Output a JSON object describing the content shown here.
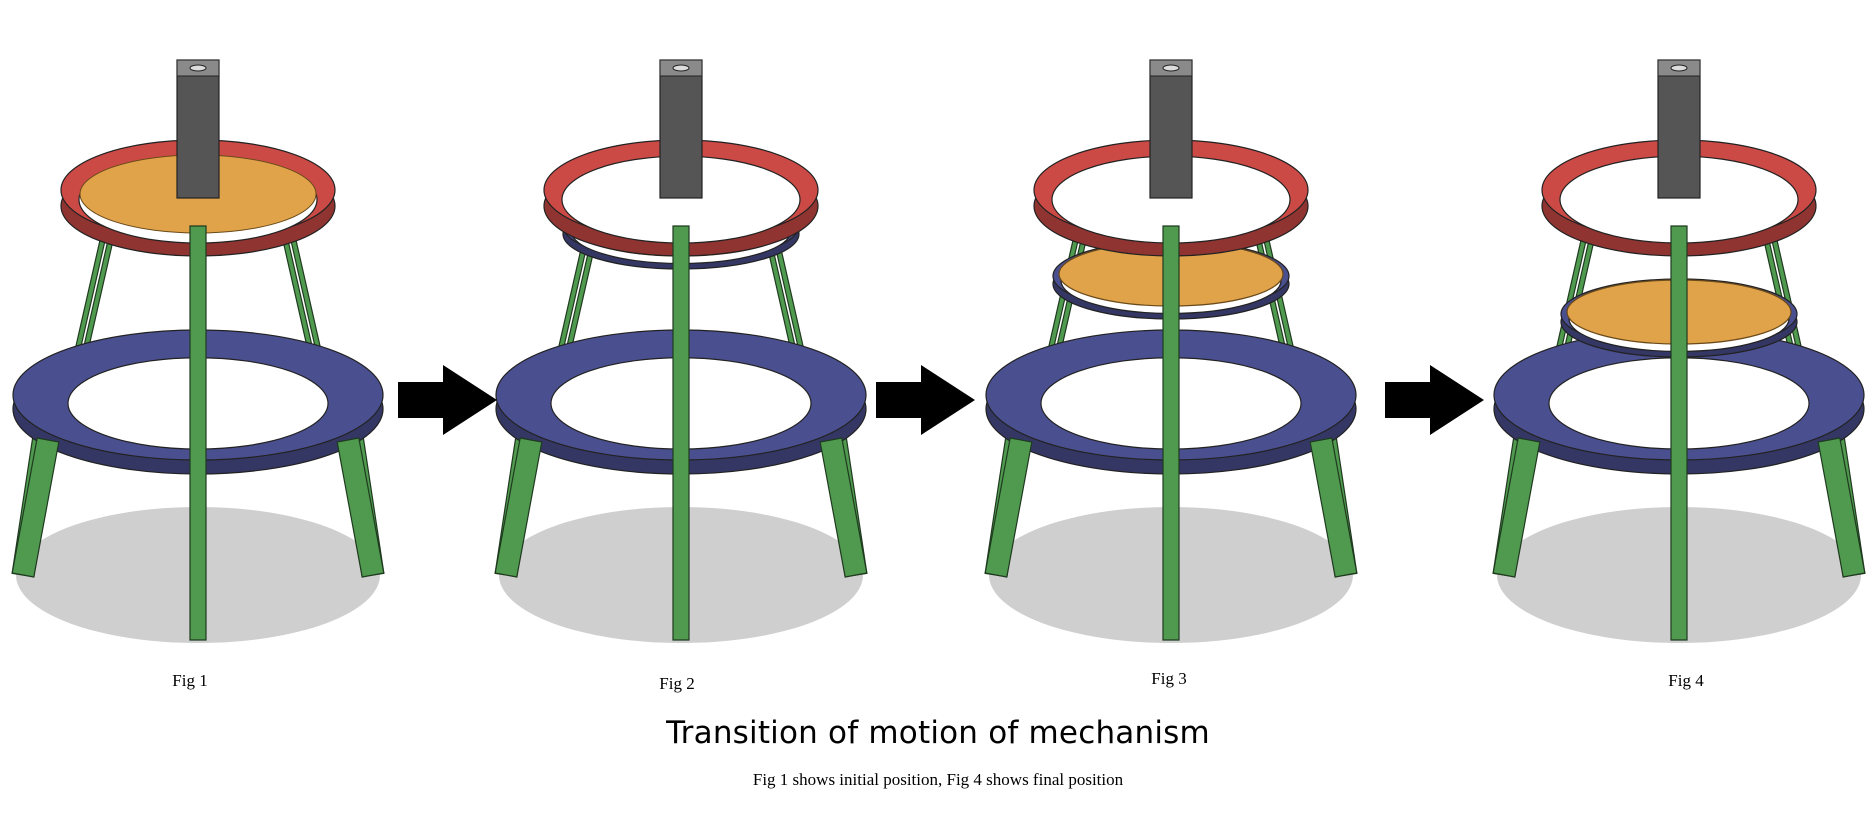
{
  "figures": [
    {
      "caption": "Fig 1",
      "state": "initial"
    },
    {
      "caption": "Fig 2",
      "state": "plate-lowering"
    },
    {
      "caption": "Fig 3",
      "state": "plate-lowered"
    },
    {
      "caption": "Fig 4",
      "state": "final"
    }
  ],
  "title": "Transition of motion of mechanism",
  "subtitle": "Fig 1 shows initial position, Fig 4 shows final position",
  "colors": {
    "top_ring": "#cc4a45",
    "plate": "#e0a34a",
    "mid_ring": "#4a4f8f",
    "legs": "#4f9a4f",
    "column": "#555555",
    "shadow": "#cfcfcf",
    "arrow": "#000000"
  },
  "icons": {
    "arrow": "right-arrow-icon"
  }
}
